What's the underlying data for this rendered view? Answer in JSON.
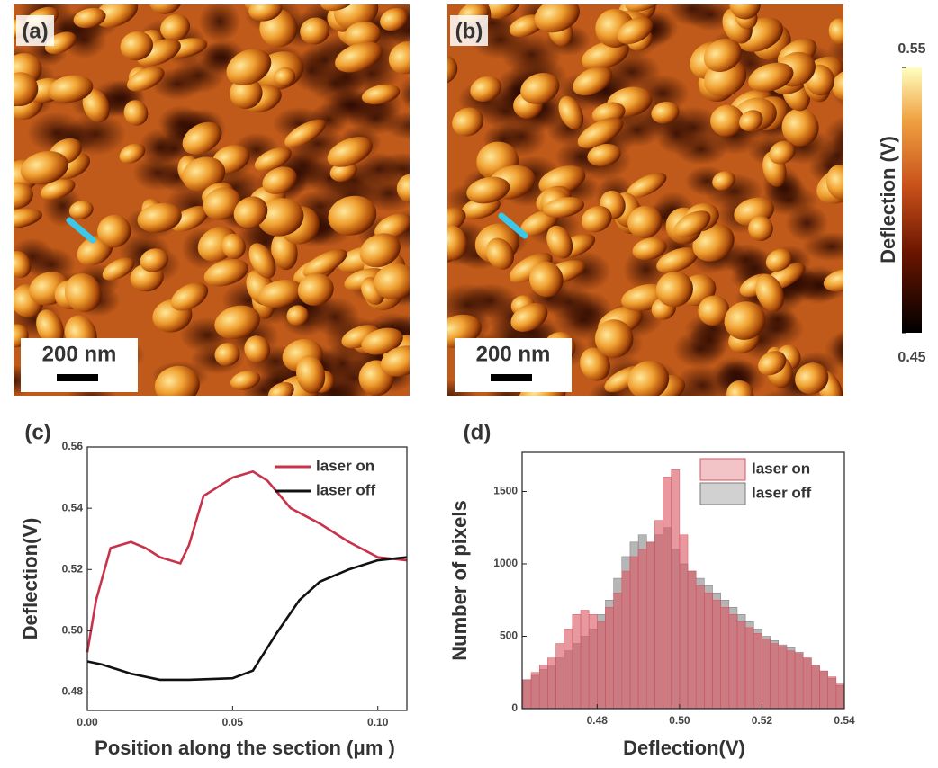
{
  "images": [
    {
      "label": "(a)",
      "scale_bar": "200 nm"
    },
    {
      "label": "(b)",
      "scale_bar": "200 nm"
    }
  ],
  "colorbar": {
    "title": "Deflection (V)",
    "ticks": [
      0.45,
      0.55
    ]
  },
  "chart_data": [
    {
      "type": "line",
      "panel": "(c)",
      "x_label": "Position along the section (μm )",
      "y_label": "Deflection(V)",
      "xlim": [
        0,
        0.11
      ],
      "xticks": [
        {
          "value": 0,
          "label": "0.00"
        },
        0.05,
        {
          "value": 0.1,
          "label": "0.10"
        }
      ],
      "ylim": [
        0.474,
        0.56
      ],
      "yticks": [
        0.48,
        {
          "value": 0.5,
          "label": "0.50"
        },
        0.52,
        0.54,
        {
          "value": 0.56,
          "label": "0.56"
        }
      ],
      "grid": false,
      "legend": "upper right",
      "series": [
        {
          "name": "laser on",
          "color": "#c8324a",
          "x": [
            0,
            0.003,
            0.008,
            0.015,
            0.02,
            0.025,
            0.032,
            0.035,
            0.04,
            0.045,
            0.05,
            0.057,
            0.062,
            0.07,
            0.08,
            0.09,
            0.1,
            0.11
          ],
          "values": [
            0.493,
            0.51,
            0.527,
            0.529,
            0.527,
            0.524,
            0.522,
            0.528,
            0.544,
            0.547,
            0.55,
            0.552,
            0.549,
            0.54,
            0.535,
            0.529,
            0.524,
            0.523
          ]
        },
        {
          "name": "laser off",
          "color": "#111111",
          "x": [
            0,
            0.005,
            0.015,
            0.025,
            0.035,
            0.05,
            0.057,
            0.065,
            0.073,
            0.08,
            0.09,
            0.1,
            0.11
          ],
          "values": [
            0.49,
            0.489,
            0.486,
            0.484,
            0.484,
            0.4845,
            0.487,
            0.499,
            0.51,
            0.516,
            0.52,
            0.523,
            0.524
          ]
        }
      ]
    },
    {
      "type": "histogram",
      "panel": "(d)",
      "x_label": "Deflection(V)",
      "y_label": "Number of pixels",
      "xlim": [
        0.4618,
        0.54
      ],
      "xticks": [
        0.48,
        {
          "value": 0.5,
          "label": "0.50"
        },
        0.52,
        0.54
      ],
      "ylim": [
        0,
        1770
      ],
      "yticks": [
        0,
        500,
        1000,
        1500
      ],
      "grid": false,
      "legend": "upper right",
      "bins": [
        0.462,
        0.464,
        0.466,
        0.468,
        0.47,
        0.472,
        0.474,
        0.476,
        0.478,
        0.48,
        0.482,
        0.484,
        0.486,
        0.488,
        0.49,
        0.492,
        0.494,
        0.496,
        0.498,
        0.5,
        0.502,
        0.504,
        0.506,
        0.508,
        0.51,
        0.512,
        0.514,
        0.516,
        0.518,
        0.52,
        0.522,
        0.524,
        0.526,
        0.528,
        0.53,
        0.532,
        0.534,
        0.536,
        0.538,
        0.54
      ],
      "series": [
        {
          "name": "laser on",
          "color": "#d9535f",
          "values": [
            200,
            250,
            300,
            350,
            450,
            550,
            650,
            680,
            650,
            600,
            700,
            800,
            950,
            1050,
            1100,
            1150,
            1300,
            1600,
            1650,
            1200,
            950,
            850,
            800,
            750,
            700,
            650,
            600,
            560,
            520,
            480,
            450,
            430,
            400,
            380,
            350,
            300,
            260,
            220,
            170
          ]
        },
        {
          "name": "laser off",
          "color": "#7a7a7a",
          "values": [
            200,
            230,
            270,
            300,
            350,
            400,
            450,
            500,
            550,
            650,
            750,
            900,
            1050,
            1150,
            1200,
            1150,
            1200,
            1250,
            1100,
            1000,
            950,
            900,
            850,
            800,
            750,
            700,
            650,
            600,
            550,
            500,
            470,
            440,
            420,
            390,
            350,
            300,
            260,
            210,
            160
          ]
        }
      ]
    }
  ]
}
